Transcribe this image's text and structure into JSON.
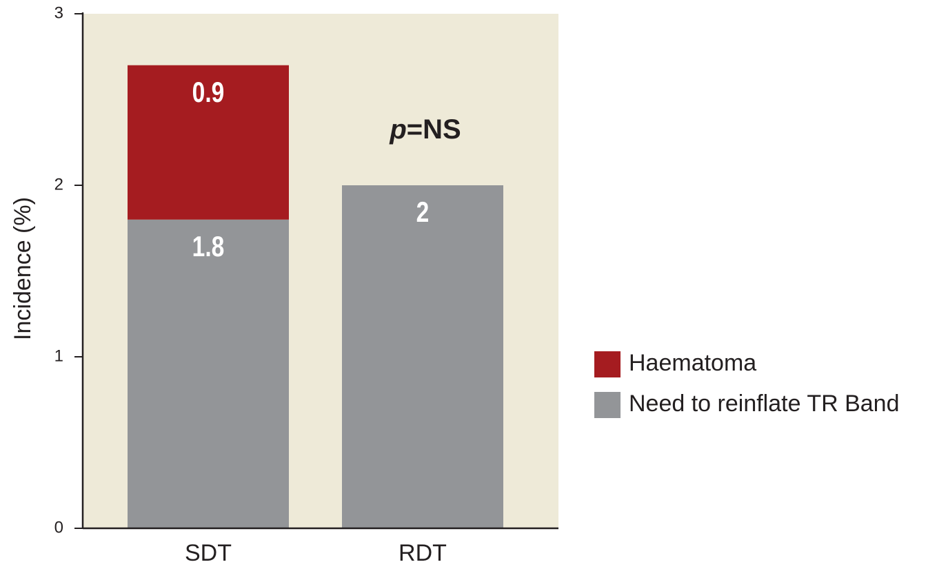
{
  "chart_data": {
    "type": "bar",
    "stacked": true,
    "y_label": "Incidence (%)",
    "categories": [
      "SDT",
      "RDT"
    ],
    "series": [
      {
        "name": "Need to reinflate TR Band",
        "color": "#939598",
        "values": [
          1.8,
          2
        ]
      },
      {
        "name": "Haematoma",
        "color": "#a51c20",
        "values": [
          0.9,
          null
        ]
      }
    ],
    "annotation": [
      "p",
      "=NS"
    ],
    "ylim": [
      0,
      3
    ],
    "yticks": [
      0,
      1,
      2,
      3
    ],
    "background": "#eeead8"
  }
}
